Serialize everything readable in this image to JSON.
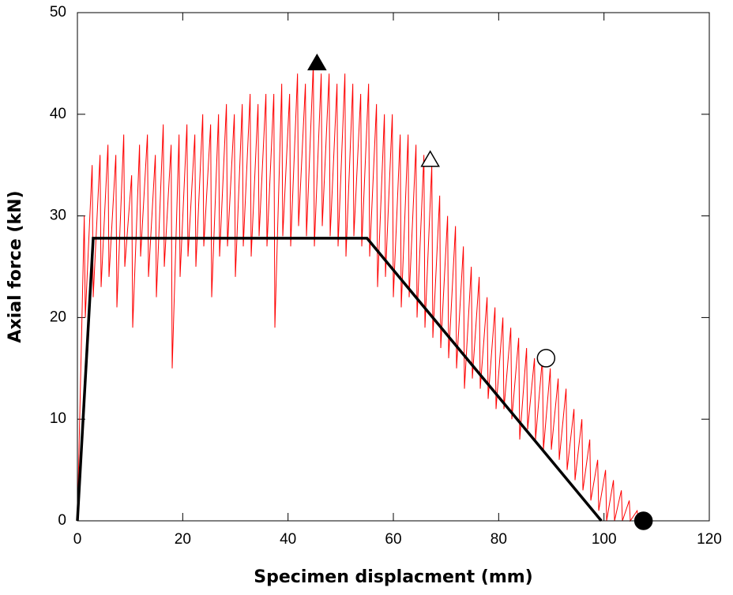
{
  "chart_data": {
    "type": "line",
    "xlabel": "Specimen displacment (mm)",
    "ylabel": "Axial force (kN)",
    "xlim": [
      0,
      120
    ],
    "ylim": [
      0,
      50
    ],
    "xticks": [
      0,
      20,
      40,
      60,
      80,
      100,
      120
    ],
    "yticks": [
      0,
      10,
      20,
      30,
      40,
      50
    ],
    "series": [
      {
        "color": "#ff0000",
        "width": 1,
        "x": [
          0,
          1.3,
          1.5,
          2.8,
          3.0,
          4.3,
          4.5,
          5.8,
          6.0,
          7.3,
          7.5,
          8.8,
          9.0,
          10.3,
          10.5,
          11.8,
          12.0,
          13.3,
          13.5,
          14.8,
          15.0,
          16.3,
          16.5,
          17.8,
          18.0,
          19.3,
          19.5,
          20.8,
          21.0,
          22.3,
          22.5,
          23.8,
          24.0,
          25.3,
          25.5,
          26.8,
          27.0,
          28.3,
          28.5,
          29.8,
          30.0,
          31.3,
          31.5,
          32.8,
          33.0,
          34.3,
          34.5,
          35.8,
          36.0,
          37.3,
          37.5,
          38.8,
          39.0,
          40.3,
          40.5,
          41.8,
          42.0,
          43.3,
          43.5,
          44.8,
          45.0,
          46.3,
          46.5,
          47.8,
          48.0,
          49.3,
          49.5,
          50.8,
          51.0,
          52.3,
          52.5,
          53.8,
          54.0,
          55.3,
          55.5,
          56.8,
          57.0,
          58.3,
          58.5,
          59.8,
          60.0,
          61.3,
          61.5,
          62.8,
          63.0,
          64.3,
          64.5,
          65.8,
          66.0,
          67.3,
          67.5,
          68.8,
          69.0,
          70.3,
          70.5,
          71.8,
          72.0,
          73.3,
          73.5,
          74.8,
          75.0,
          76.3,
          76.5,
          77.8,
          78.0,
          79.3,
          79.5,
          80.8,
          81.0,
          82.3,
          82.5,
          83.8,
          84.0,
          85.3,
          85.5,
          86.8,
          87.0,
          88.3,
          88.5,
          89.8,
          90.0,
          91.3,
          91.5,
          92.8,
          93.0,
          94.3,
          94.5,
          95.8,
          96.0,
          97.3,
          97.5,
          98.8,
          99.0,
          100.3,
          100.5,
          101.8,
          102.0,
          103.3,
          103.5,
          104.8,
          105.0,
          106.3,
          106.5,
          108,
          111
        ],
        "values": [
          0,
          30,
          20,
          35,
          22,
          36,
          23,
          37,
          24,
          36,
          21,
          38,
          25,
          34,
          19,
          37,
          26,
          38,
          24,
          36,
          22,
          39,
          25,
          37,
          15,
          38,
          24,
          39,
          26,
          38,
          25,
          40,
          27,
          39,
          22,
          40,
          26,
          41,
          27,
          40,
          24,
          41,
          27,
          42,
          26,
          41,
          28,
          42,
          27,
          42,
          19,
          43,
          28,
          42,
          27,
          44,
          29,
          43,
          28,
          45,
          27,
          44,
          29,
          44,
          28,
          43,
          27,
          44,
          26,
          43,
          28,
          42,
          27,
          43,
          26,
          41,
          23,
          40,
          24,
          40,
          22,
          38,
          21,
          38,
          22,
          37,
          20,
          36,
          19,
          35,
          18,
          32,
          17,
          30,
          16,
          29,
          15,
          27,
          13,
          25,
          14,
          24,
          13,
          22,
          12,
          21,
          11,
          20,
          11,
          19,
          10,
          18,
          8,
          17,
          9,
          16,
          8,
          16,
          7,
          15,
          7,
          14,
          6,
          13,
          5,
          11,
          4,
          10,
          3,
          8,
          2,
          6,
          1,
          5,
          0,
          4,
          0,
          3,
          0,
          2,
          0,
          1,
          0,
          0,
          0
        ]
      },
      {
        "color": "#000000",
        "width": 3.5,
        "x": [
          0,
          3,
          55,
          99.5
        ],
        "values": [
          0,
          27.8,
          27.8,
          0
        ]
      }
    ],
    "markers": [
      {
        "shape": "triangle",
        "fill": "#000000",
        "x": 45.5,
        "y": 45
      },
      {
        "shape": "triangle",
        "fill": "#ffffff",
        "x": 67,
        "y": 35.5
      },
      {
        "shape": "circle",
        "fill": "#ffffff",
        "x": 89,
        "y": 16
      },
      {
        "shape": "circle",
        "fill": "#000000",
        "x": 107.5,
        "y": 0
      }
    ]
  }
}
